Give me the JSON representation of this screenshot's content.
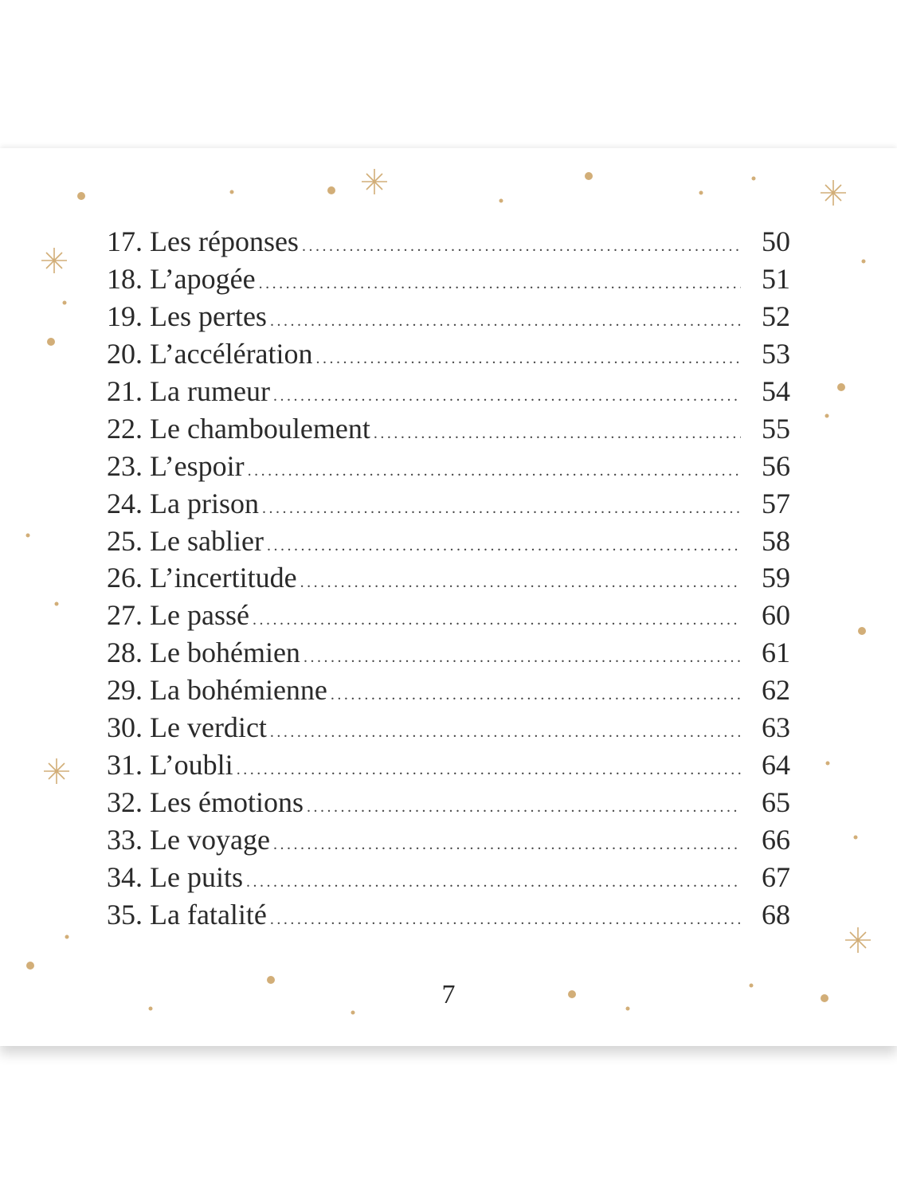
{
  "toc": {
    "entries": [
      {
        "number": "17.",
        "title": "Les réponses",
        "page": "50"
      },
      {
        "number": "18.",
        "title": "L’apogée",
        "page": "51"
      },
      {
        "number": "19.",
        "title": "Les pertes",
        "page": "52"
      },
      {
        "number": "20.",
        "title": "L’accélération",
        "page": "53"
      },
      {
        "number": "21.",
        "title": "La rumeur",
        "page": "54"
      },
      {
        "number": "22.",
        "title": "Le chamboulement",
        "page": "55"
      },
      {
        "number": "23.",
        "title": "L’espoir",
        "page": "56"
      },
      {
        "number": "24.",
        "title": "La prison",
        "page": "57"
      },
      {
        "number": "25.",
        "title": "Le sablier",
        "page": "58"
      },
      {
        "number": "26.",
        "title": "L’incertitude",
        "page": "59"
      },
      {
        "number": "27.",
        "title": "Le passé",
        "page": "60"
      },
      {
        "number": "28.",
        "title": "Le bohémien",
        "page": "61"
      },
      {
        "number": "29.",
        "title": "La bohémienne",
        "page": "62"
      },
      {
        "number": "30.",
        "title": "Le verdict",
        "page": "63"
      },
      {
        "number": "31.",
        "title": "L’oubli",
        "page": "64"
      },
      {
        "number": "32.",
        "title": "Les émotions",
        "page": "65"
      },
      {
        "number": "33.",
        "title": "Le voyage",
        "page": "66"
      },
      {
        "number": "34.",
        "title": "Le puits",
        "page": "67"
      },
      {
        "number": "35.",
        "title": "La fatalité",
        "page": "68"
      }
    ]
  },
  "folio": "7",
  "colors": {
    "accent_gold": "#d2ae78",
    "text": "#2a2a2a"
  },
  "decorations": {
    "icons": [
      "dot-icon",
      "sparkle-star-icon"
    ]
  }
}
